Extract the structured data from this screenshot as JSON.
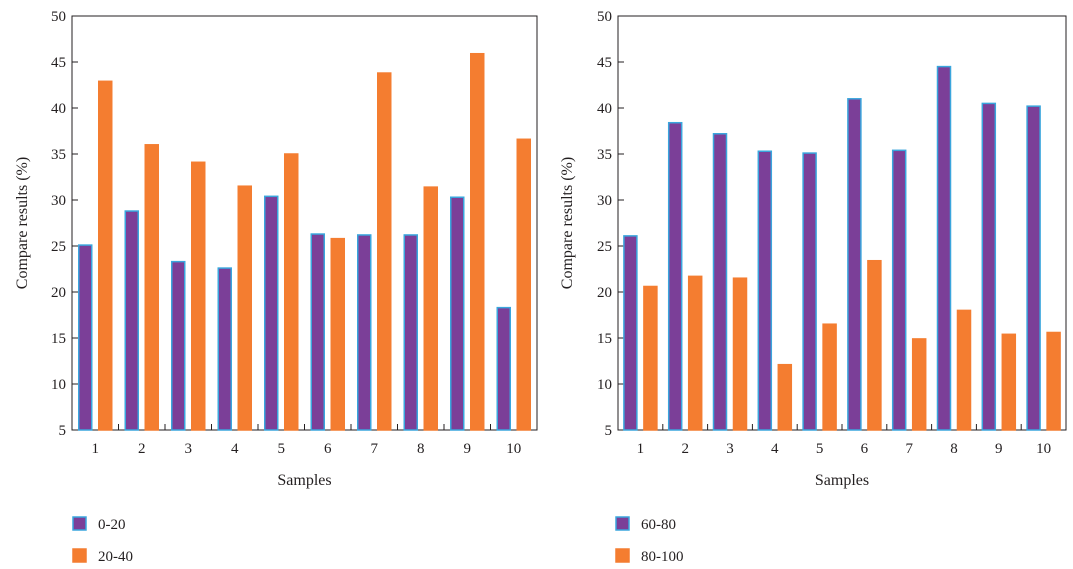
{
  "chart_data": [
    {
      "type": "bar",
      "title": "",
      "xlabel": "Samples",
      "ylabel": "Compare results (%)",
      "ylim": [
        5,
        50
      ],
      "yticks": [
        5,
        10,
        15,
        20,
        25,
        30,
        35,
        40,
        45,
        50
      ],
      "categories": [
        "1",
        "2",
        "3",
        "4",
        "5",
        "6",
        "7",
        "8",
        "9",
        "10"
      ],
      "grid": false,
      "legend_position": "bottom-left",
      "series": [
        {
          "name": "0-20",
          "color": "#7b3f98",
          "edge_color": "#3aa6dd",
          "values": [
            25.1,
            28.8,
            23.3,
            22.6,
            30.4,
            26.3,
            26.2,
            26.2,
            30.3,
            18.3
          ]
        },
        {
          "name": "20-40",
          "color": "#f47d30",
          "edge_color": "#f47d30",
          "values": [
            42.9,
            36.0,
            34.1,
            31.5,
            35.0,
            25.8,
            43.8,
            31.4,
            45.9,
            36.6
          ]
        }
      ]
    },
    {
      "type": "bar",
      "title": "",
      "xlabel": "Samples",
      "ylabel": "Compare results (%)",
      "ylim": [
        5,
        50
      ],
      "yticks": [
        5,
        10,
        15,
        20,
        25,
        30,
        35,
        40,
        45,
        50
      ],
      "categories": [
        "1",
        "2",
        "3",
        "4",
        "5",
        "6",
        "7",
        "8",
        "9",
        "10"
      ],
      "grid": false,
      "legend_position": "bottom-left",
      "series": [
        {
          "name": "60-80",
          "color": "#7b3f98",
          "edge_color": "#3aa6dd",
          "values": [
            26.1,
            38.4,
            37.2,
            35.3,
            35.1,
            41.0,
            35.4,
            44.5,
            40.5,
            40.2
          ]
        },
        {
          "name": "80-100",
          "color": "#f47d30",
          "edge_color": "#f47d30",
          "values": [
            20.6,
            21.7,
            21.5,
            12.1,
            16.5,
            23.4,
            14.9,
            18.0,
            15.4,
            15.6
          ]
        }
      ]
    }
  ]
}
